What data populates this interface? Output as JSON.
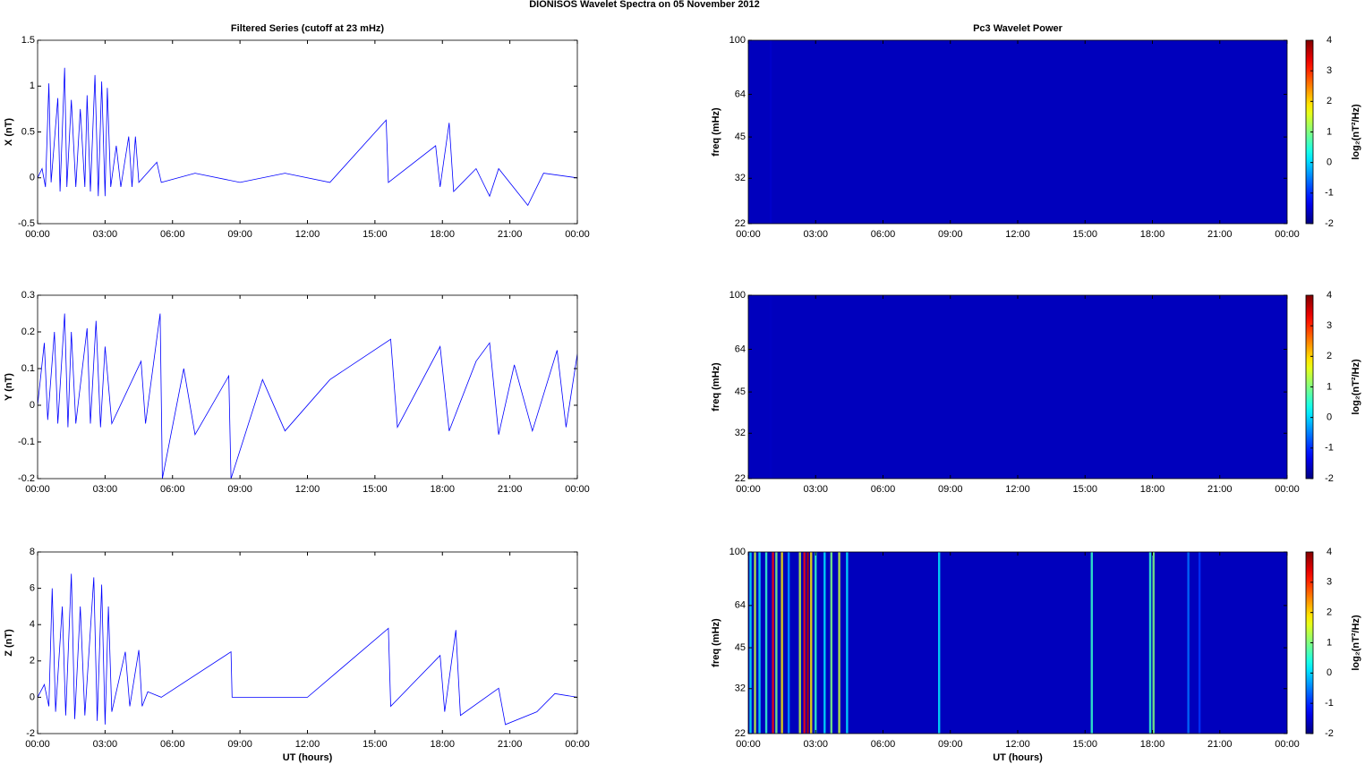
{
  "title": "DIONISOS Wavelet Spectra on 05 November  2012",
  "chart_data": [
    {
      "type": "line",
      "title": "Filtered Series (cutoff at 23 mHz)",
      "ylabel": "X (nT)",
      "color": "#0000ff",
      "x": [
        0,
        0.2,
        0.35,
        0.5,
        0.6,
        0.9,
        1.0,
        1.2,
        1.3,
        1.5,
        1.7,
        1.9,
        2.1,
        2.2,
        2.35,
        2.55,
        2.7,
        2.85,
        3.0,
        3.1,
        3.25,
        3.5,
        3.7,
        4.05,
        4.2,
        4.35,
        4.5,
        5.3,
        5.5,
        7,
        9,
        11,
        13,
        15.5,
        15.6,
        17.7,
        17.9,
        18.3,
        18.5,
        19.5,
        20.1,
        20.5,
        21.8,
        22.5,
        24
      ],
      "values": [
        0,
        0.1,
        -0.1,
        1.03,
        -0.05,
        0.87,
        -0.15,
        1.2,
        -0.1,
        0.85,
        -0.1,
        0.75,
        -0.1,
        0.9,
        -0.15,
        1.12,
        -0.2,
        1.05,
        -0.2,
        0.98,
        -0.1,
        0.35,
        -0.1,
        0.45,
        -0.1,
        0.45,
        -0.05,
        0.17,
        -0.05,
        0.05,
        -0.05,
        0.05,
        -0.05,
        0.63,
        -0.05,
        0.35,
        -0.1,
        0.6,
        -0.15,
        0.1,
        -0.2,
        0.1,
        -0.3,
        0.05,
        0
      ],
      "xlim": [
        0,
        24
      ],
      "xticks": [
        {
          "value": 0,
          "label": "00:00"
        },
        {
          "value": 3,
          "label": "03:00"
        },
        {
          "value": 6,
          "label": "06:00"
        },
        {
          "value": 9,
          "label": "09:00"
        },
        {
          "value": 12,
          "label": "12:00"
        },
        {
          "value": 15,
          "label": "15:00"
        },
        {
          "value": 18,
          "label": "18:00"
        },
        {
          "value": 21,
          "label": "21:00"
        },
        {
          "value": 24,
          "label": "00:00"
        }
      ],
      "ylim": [
        -0.5,
        1.5
      ],
      "yticks": [
        -0.5,
        0,
        0.5,
        1,
        1.5
      ]
    },
    {
      "type": "heatmap",
      "title": "Pc3 Wavelet Power",
      "ylabel": "freq (mHz)",
      "colormap": "jet",
      "x": [
        1.0
      ],
      "values": [
        -1.9
      ],
      "xlim": [
        0,
        24
      ],
      "xticks": [
        {
          "value": 0,
          "label": "00:00"
        },
        {
          "value": 3,
          "label": "03:00"
        },
        {
          "value": 6,
          "label": "06:00"
        },
        {
          "value": 9,
          "label": "09:00"
        },
        {
          "value": 12,
          "label": "12:00"
        },
        {
          "value": 15,
          "label": "15:00"
        },
        {
          "value": 18,
          "label": "18:00"
        },
        {
          "value": 21,
          "label": "21:00"
        },
        {
          "value": 24,
          "label": "00:00"
        }
      ],
      "ylim": [
        22,
        100
      ],
      "yticks": [
        22,
        32,
        45,
        64,
        100
      ],
      "log_y": true,
      "clim": [
        -2,
        4
      ],
      "cticks": [
        -2,
        -1,
        0,
        1,
        2,
        3,
        4
      ],
      "colorbar_label": "log₂(nT²/Hz)"
    },
    {
      "type": "line",
      "ylabel": "Y (nT)",
      "color": "#0000ff",
      "x": [
        0,
        0.3,
        0.45,
        0.75,
        0.9,
        1.2,
        1.35,
        1.5,
        1.7,
        2.2,
        2.35,
        2.6,
        2.8,
        3.0,
        3.3,
        4.6,
        4.8,
        5.45,
        5.55,
        6.5,
        7,
        8.5,
        8.6,
        10,
        11,
        13,
        15.7,
        16,
        17.9,
        18.3,
        19.5,
        20.1,
        20.5,
        21.2,
        22,
        23.1,
        23.5,
        24
      ],
      "values": [
        0,
        0.17,
        -0.04,
        0.2,
        -0.05,
        0.25,
        -0.06,
        0.2,
        -0.05,
        0.21,
        -0.05,
        0.23,
        -0.06,
        0.16,
        -0.05,
        0.12,
        -0.05,
        0.25,
        -0.2,
        0.1,
        -0.08,
        0.08,
        -0.2,
        0.07,
        -0.07,
        0.07,
        0.18,
        -0.06,
        0.16,
        -0.07,
        0.12,
        0.17,
        -0.08,
        0.11,
        -0.07,
        0.15,
        -0.06,
        0.14
      ],
      "xlim": [
        0,
        24
      ],
      "xticks": [
        {
          "value": 0,
          "label": "00:00"
        },
        {
          "value": 3,
          "label": "03:00"
        },
        {
          "value": 6,
          "label": "06:00"
        },
        {
          "value": 9,
          "label": "09:00"
        },
        {
          "value": 12,
          "label": "12:00"
        },
        {
          "value": 15,
          "label": "15:00"
        },
        {
          "value": 18,
          "label": "18:00"
        },
        {
          "value": 21,
          "label": "21:00"
        },
        {
          "value": 24,
          "label": "00:00"
        }
      ],
      "ylim": [
        -0.2,
        0.3
      ],
      "yticks": [
        -0.2,
        -0.1,
        0,
        0.1,
        0.2,
        0.3
      ]
    },
    {
      "type": "heatmap",
      "ylabel": "freq (mHz)",
      "colormap": "jet",
      "x": [
        1.0
      ],
      "values": [
        -1.95
      ],
      "xlim": [
        0,
        24
      ],
      "xticks": [
        {
          "value": 0,
          "label": "00:00"
        },
        {
          "value": 3,
          "label": "03:00"
        },
        {
          "value": 6,
          "label": "06:00"
        },
        {
          "value": 9,
          "label": "09:00"
        },
        {
          "value": 12,
          "label": "12:00"
        },
        {
          "value": 15,
          "label": "15:00"
        },
        {
          "value": 18,
          "label": "18:00"
        },
        {
          "value": 21,
          "label": "21:00"
        },
        {
          "value": 24,
          "label": "00:00"
        }
      ],
      "ylim": [
        22,
        100
      ],
      "yticks": [
        22,
        32,
        45,
        64,
        100
      ],
      "log_y": true,
      "clim": [
        -2,
        4
      ],
      "cticks": [
        -2,
        -1,
        0,
        1,
        2,
        3,
        4
      ],
      "colorbar_label": "log₂(nT²/Hz)"
    },
    {
      "type": "line",
      "ylabel": "Z (nT)",
      "xlabel": "UT (hours)",
      "color": "#0000ff",
      "x": [
        0,
        0.3,
        0.5,
        0.65,
        0.8,
        1.1,
        1.25,
        1.5,
        1.65,
        1.9,
        2.1,
        2.5,
        2.65,
        2.85,
        3.0,
        3.15,
        3.3,
        3.9,
        4.1,
        4.5,
        4.65,
        4.9,
        5.5,
        8.6,
        8.65,
        12,
        15.6,
        15.7,
        17.9,
        18.1,
        18.6,
        18.8,
        20.5,
        20.8,
        22.2,
        23,
        24
      ],
      "values": [
        0,
        0.7,
        -0.5,
        6,
        -0.8,
        5,
        -1,
        6.8,
        -1.2,
        5,
        -1,
        6.6,
        -1.3,
        6.2,
        -1.5,
        5,
        -0.8,
        2.5,
        -0.5,
        2.6,
        -0.5,
        0.3,
        0,
        2.5,
        0,
        0,
        3.8,
        -0.5,
        2.3,
        -0.8,
        3.7,
        -1,
        0.5,
        -1.5,
        -0.8,
        0.2,
        0
      ],
      "xlim": [
        0,
        24
      ],
      "xticks": [
        {
          "value": 0,
          "label": "00:00"
        },
        {
          "value": 3,
          "label": "03:00"
        },
        {
          "value": 6,
          "label": "06:00"
        },
        {
          "value": 9,
          "label": "09:00"
        },
        {
          "value": 12,
          "label": "12:00"
        },
        {
          "value": 15,
          "label": "15:00"
        },
        {
          "value": 18,
          "label": "18:00"
        },
        {
          "value": 21,
          "label": "21:00"
        },
        {
          "value": 24,
          "label": "00:00"
        }
      ],
      "ylim": [
        -2,
        8
      ],
      "yticks": [
        -2,
        0,
        2,
        4,
        6,
        8
      ]
    },
    {
      "type": "heatmap",
      "ylabel": "freq (mHz)",
      "xlabel": "UT (hours)",
      "colormap": "jet",
      "x": [
        0.1,
        0.3,
        0.5,
        0.8,
        1.1,
        1.25,
        1.5,
        1.8,
        2.3,
        2.5,
        2.65,
        2.8,
        3.0,
        3.4,
        3.7,
        4.05,
        4.4,
        8.5,
        15.3,
        17.9,
        18.05,
        19.6,
        20.1
      ],
      "values": [
        0,
        1.5,
        0,
        0.5,
        3.5,
        1,
        2,
        -0.5,
        1.5,
        3.5,
        4,
        2,
        0.5,
        0,
        1,
        1.5,
        0,
        0,
        0.5,
        0.5,
        1,
        -0.8,
        -1.2
      ],
      "xlim": [
        0,
        24
      ],
      "xticks": [
        {
          "value": 0,
          "label": "00:00"
        },
        {
          "value": 3,
          "label": "03:00"
        },
        {
          "value": 6,
          "label": "06:00"
        },
        {
          "value": 9,
          "label": "09:00"
        },
        {
          "value": 12,
          "label": "12:00"
        },
        {
          "value": 15,
          "label": "15:00"
        },
        {
          "value": 18,
          "label": "18:00"
        },
        {
          "value": 21,
          "label": "21:00"
        },
        {
          "value": 24,
          "label": "00:00"
        }
      ],
      "ylim": [
        22,
        100
      ],
      "yticks": [
        22,
        32,
        45,
        64,
        100
      ],
      "log_y": true,
      "clim": [
        -2,
        4
      ],
      "cticks": [
        -2,
        -1,
        0,
        1,
        2,
        3,
        4
      ],
      "colorbar_label": "log₂(nT²/Hz)"
    }
  ]
}
